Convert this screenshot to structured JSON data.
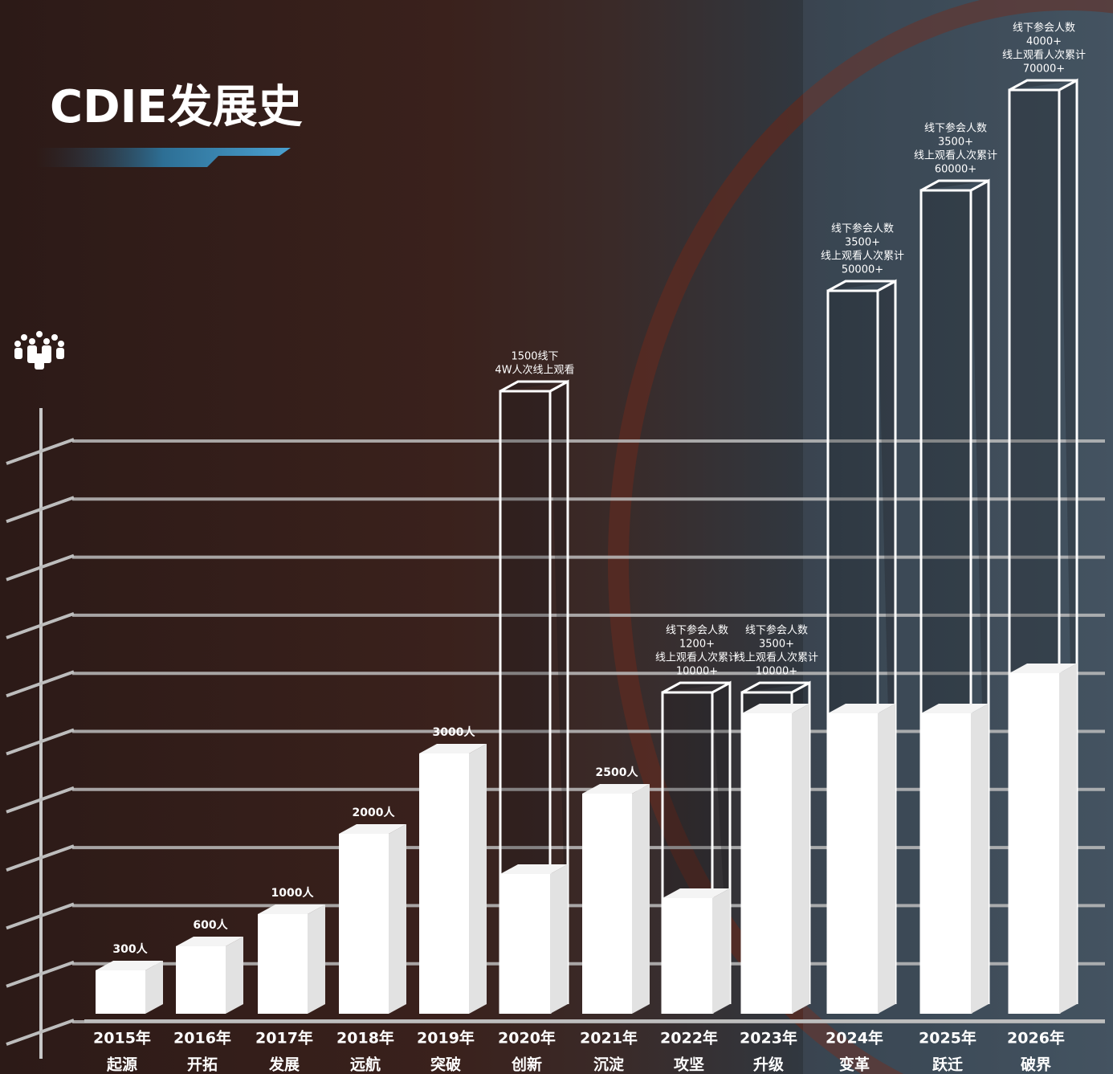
{
  "chart_data": {
    "type": "bar3d",
    "title": "CDIE发展史",
    "categories": [
      "2015年",
      "2016年",
      "2017年",
      "2018年",
      "2019年",
      "2020年",
      "2021年",
      "2022年",
      "2023年",
      "2024年",
      "2025年",
      "2026年"
    ],
    "category_names": [
      "起源",
      "开拓",
      "发展",
      "远航",
      "突破",
      "创新",
      "沉淀",
      "攻坚",
      "升级",
      "变革",
      "跃迁",
      "破界"
    ],
    "series": [
      {
        "name": "线下参会人数",
        "color": "#ffffff",
        "values": [
          300,
          600,
          1000,
          2000,
          3000,
          1500,
          2500,
          1200,
          3500,
          3500,
          3500,
          4000
        ],
        "value_labels": [
          "300人",
          "600人",
          "1000人",
          "2000人",
          "3000人",
          "1500线下",
          "2500人",
          "1200+",
          "3500+",
          "3500+",
          "3500+",
          "4000+"
        ]
      },
      {
        "name": "线上观看人次累计",
        "color": "#ffffff",
        "values": [
          null,
          null,
          null,
          null,
          null,
          40000,
          null,
          10000,
          10000,
          50000,
          60000,
          70000
        ],
        "value_labels": [
          null,
          null,
          null,
          null,
          null,
          "4W人次线上观看",
          null,
          "10000+",
          "10000+",
          "50000+",
          "60000+",
          "70000+"
        ]
      }
    ]
  }
}
